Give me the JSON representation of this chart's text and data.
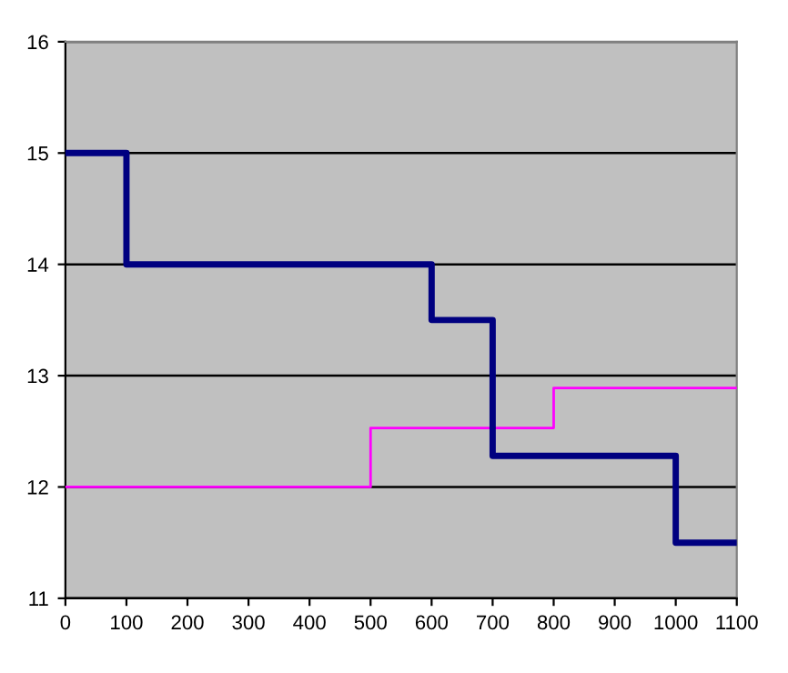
{
  "chart_data": {
    "type": "step",
    "series": [
      {
        "color": "#000080",
        "x": [
          0,
          100,
          600,
          700,
          1000,
          1100
        ],
        "values": [
          15,
          14,
          13.5,
          12.28,
          11.5,
          11.5
        ]
      },
      {
        "color": "#ff00ff",
        "x": [
          0,
          500,
          800,
          1100
        ],
        "values": [
          12,
          12.53,
          12.89,
          12.89
        ]
      }
    ],
    "xlim": [
      0,
      1100
    ],
    "xticks": [
      0,
      100,
      200,
      300,
      400,
      500,
      600,
      700,
      800,
      900,
      1000,
      1100
    ],
    "ylim": [
      11,
      16
    ],
    "yticks": [
      11,
      12,
      13,
      14,
      15,
      16
    ],
    "grid": "y",
    "legend": false
  }
}
